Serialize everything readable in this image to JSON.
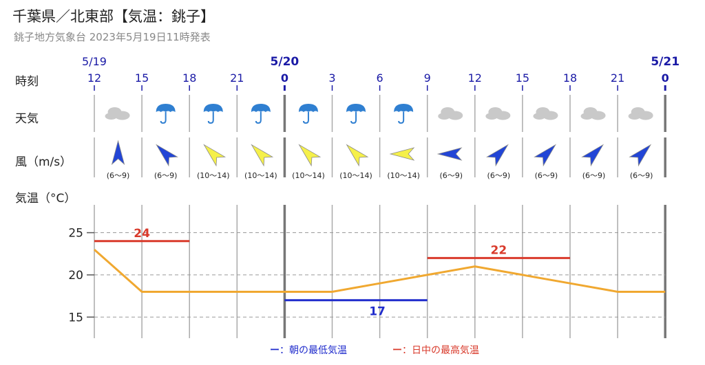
{
  "header": {
    "title": "千葉県／北東部【気温：銚子】",
    "subtitle": "銚子地方気象台 2023年5月19日11時発表"
  },
  "row_labels": {
    "time": "時刻",
    "weather": "天気",
    "wind": "風（m/s）",
    "temperature": "気温（°C）"
  },
  "colors": {
    "date_text": "#1a1aa6",
    "temp_line": "#f0a830",
    "max_temp": "#d93a2b",
    "min_temp": "#1f2bcc",
    "wind_strong": "#f5f04a",
    "wind_moderate": "#2245d6",
    "cloud": "#c9c9c9",
    "umbrella": "#2f7fd1",
    "grid": "#999999"
  },
  "chart_data": {
    "type": "line",
    "dates": [
      {
        "label": "5/19",
        "index": 0
      },
      {
        "label": "5/20",
        "index": 4
      },
      {
        "label": "5/21",
        "index": 12
      }
    ],
    "time_labels": [
      "12",
      "15",
      "18",
      "21",
      "0",
      "3",
      "6",
      "9",
      "12",
      "15",
      "18",
      "21",
      "0"
    ],
    "weather": [
      "cloud",
      "umbrella",
      "umbrella",
      "umbrella",
      "umbrella",
      "umbrella",
      "umbrella",
      "cloud",
      "cloud",
      "cloud",
      "cloud",
      "cloud"
    ],
    "wind": [
      {
        "direction": "north",
        "speed": "(6〜9)",
        "category": "moderate"
      },
      {
        "direction": "northwest",
        "speed": "(6〜9)",
        "category": "moderate"
      },
      {
        "direction": "northwest",
        "speed": "(10〜14)",
        "category": "strong"
      },
      {
        "direction": "northwest",
        "speed": "(10〜14)",
        "category": "strong"
      },
      {
        "direction": "northwest",
        "speed": "(10〜14)",
        "category": "strong"
      },
      {
        "direction": "northwest",
        "speed": "(10〜14)",
        "category": "strong"
      },
      {
        "direction": "west",
        "speed": "(10〜14)",
        "category": "strong"
      },
      {
        "direction": "west",
        "speed": "(6〜9)",
        "category": "moderate"
      },
      {
        "direction": "northeast",
        "speed": "(6〜9)",
        "category": "moderate"
      },
      {
        "direction": "northeast",
        "speed": "(6〜9)",
        "category": "moderate"
      },
      {
        "direction": "northeast",
        "speed": "(6〜9)",
        "category": "moderate"
      },
      {
        "direction": "northeast",
        "speed": "(6〜9)",
        "category": "moderate"
      }
    ],
    "temperature_line": [
      23,
      18,
      18,
      18,
      18,
      18,
      19,
      20,
      21,
      20,
      19,
      18,
      18
    ],
    "y_ticks": [
      15,
      20,
      25
    ],
    "ylim": [
      12.5,
      28.3
    ],
    "max_temps": [
      {
        "value": 24,
        "label": "24",
        "from": 0,
        "to": 2
      },
      {
        "value": 22,
        "label": "22",
        "from": 7,
        "to": 10
      }
    ],
    "min_temps": [
      {
        "value": 17,
        "label": "17",
        "from": 4,
        "to": 7
      }
    ],
    "legend": {
      "min_label": "：朝の最低気温",
      "max_label": "：日中の最高気温",
      "min_dash": "ー",
      "max_dash": "ー",
      "position": "bottom-center"
    }
  }
}
